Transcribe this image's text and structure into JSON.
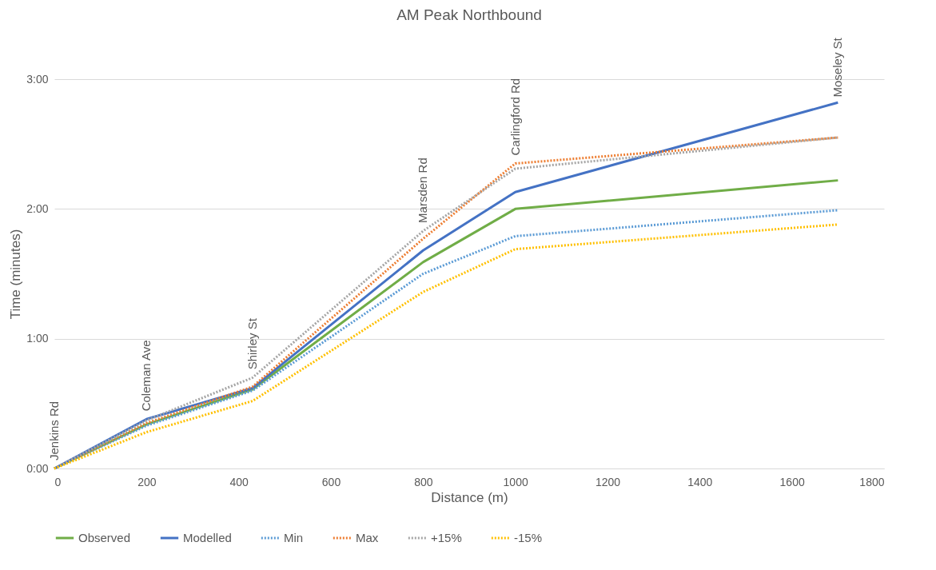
{
  "chart_data": {
    "type": "line",
    "title": "AM Peak Northbound",
    "xlabel": "Distance (m)",
    "ylabel": "Time (minutes)",
    "x": [
      0,
      200,
      430,
      800,
      1000,
      1700
    ],
    "series": [
      {
        "name": "Observed",
        "color": "#70ad47",
        "line_style": "solid",
        "values": [
          0,
          0.34,
          0.61,
          1.59,
          2.0,
          2.22
        ]
      },
      {
        "name": "Modelled",
        "color": "#4472c4",
        "line_style": "solid",
        "values": [
          0,
          0.38,
          0.62,
          1.68,
          2.13,
          2.82
        ]
      },
      {
        "name": "Min",
        "color": "#5b9bd5",
        "line_style": "dotted",
        "values": [
          0,
          0.33,
          0.6,
          1.5,
          1.79,
          1.99
        ]
      },
      {
        "name": "Max",
        "color": "#ed7d31",
        "line_style": "dotted",
        "values": [
          0,
          0.35,
          0.63,
          1.77,
          2.35,
          2.55
        ]
      },
      {
        "name": "+15%",
        "color": "#a5a5a5",
        "line_style": "dotted",
        "values": [
          0,
          0.37,
          0.7,
          1.83,
          2.31,
          2.55
        ]
      },
      {
        "name": "-15%",
        "color": "#ffc000",
        "line_style": "dotted",
        "values": [
          0,
          0.28,
          0.52,
          1.36,
          1.69,
          1.88
        ]
      }
    ],
    "xlim": [
      0,
      1800
    ],
    "xticks": [
      0,
      200,
      400,
      600,
      800,
      1000,
      1200,
      1400,
      1600,
      1800
    ],
    "ylim": [
      0,
      3
    ],
    "yticks": [
      {
        "value": 0,
        "label": "0:00"
      },
      {
        "value": 1,
        "label": "1:00"
      },
      {
        "value": 2,
        "label": "2:00"
      },
      {
        "value": 3,
        "label": "3:00"
      }
    ],
    "grid": "y",
    "legend": "bottom",
    "marker": "none",
    "annotations": [
      {
        "text": "Jenkins Rd",
        "x": 0,
        "y": 0
      },
      {
        "text": "Coleman Ave",
        "x": 200,
        "y": 0.38
      },
      {
        "text": "Shirley St",
        "x": 430,
        "y": 0.7
      },
      {
        "text": "Marsden Rd",
        "x": 800,
        "y": 1.83
      },
      {
        "text": "Carlingford Rd",
        "x": 1000,
        "y": 2.35
      },
      {
        "text": "Moseley St",
        "x": 1700,
        "y": 2.8
      }
    ]
  }
}
